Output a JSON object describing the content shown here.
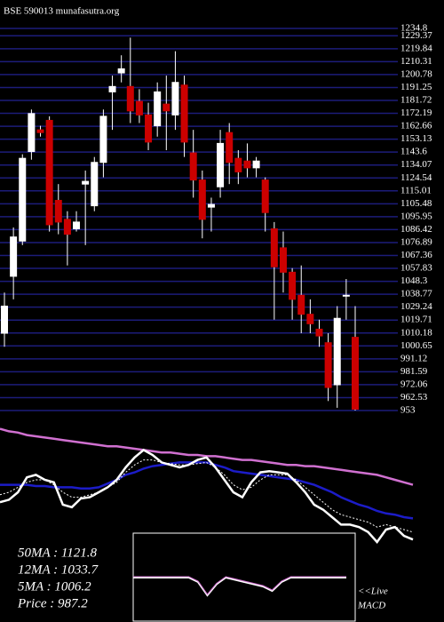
{
  "chart_data": [
    {
      "type": "candlestick",
      "title": "BSE 590013 munafasutra.org",
      "up_color": "#ffffff",
      "down_color": "#cc0000",
      "grid": true,
      "grid_color": "#1c1c7a",
      "ylim": [
        953,
        1234.8
      ],
      "yticks": [
        1234.8,
        1229.37,
        1219.84,
        1210.31,
        1200.78,
        1191.25,
        1181.72,
        1172.19,
        1162.66,
        1153.13,
        1143.6,
        1134.07,
        1124.54,
        1115.01,
        1105.48,
        1095.95,
        1086.42,
        1076.89,
        1067.36,
        1057.83,
        1048.3,
        1038.77,
        1029.24,
        1019.71,
        1010.18,
        1000.65,
        991.12,
        981.59,
        972.06,
        962.53,
        953
      ],
      "open": [
        1010,
        1052,
        1078,
        1144,
        1160,
        1167,
        1108,
        1094,
        1087,
        1120,
        1104,
        1136,
        1188,
        1202,
        1192,
        1181,
        1171,
        1163,
        1179,
        1171,
        1193,
        1143,
        1123,
        1103,
        1118,
        1158,
        1139,
        1137,
        1132,
        1123,
        1087,
        1073,
        1055,
        1038,
        1024,
        1013,
        1003,
        972,
        1038,
        1007
      ],
      "high": [
        1040,
        1088,
        1142,
        1175,
        1163,
        1170,
        1120,
        1100,
        1100,
        1130,
        1140,
        1175,
        1200,
        1215,
        1228,
        1190,
        1180,
        1195,
        1200,
        1218,
        1200,
        1160,
        1130,
        1110,
        1160,
        1165,
        1145,
        1150,
        1140,
        1125,
        1092,
        1085,
        1058,
        1060,
        1035,
        1020,
        1010,
        1030,
        1050,
        1030
      ],
      "low": [
        1000,
        1035,
        1075,
        1138,
        1155,
        1085,
        1083,
        1060,
        1085,
        1075,
        1100,
        1125,
        1160,
        1195,
        1165,
        1165,
        1145,
        1155,
        1145,
        1160,
        1140,
        1110,
        1080,
        1085,
        1110,
        1120,
        1120,
        1125,
        1125,
        1085,
        1020,
        1040,
        1020,
        1010,
        1010,
        1000,
        960,
        955,
        1020,
        953
      ],
      "close": [
        1030,
        1081,
        1139,
        1172,
        1158,
        1090,
        1092,
        1083,
        1092,
        1122,
        1136,
        1170,
        1192,
        1205,
        1174,
        1171,
        1151,
        1188,
        1174,
        1195,
        1151,
        1123,
        1094,
        1105,
        1150,
        1136,
        1129,
        1132,
        1137,
        1099,
        1059,
        1055,
        1035,
        1024,
        1017,
        1008,
        970,
        1021,
        1038,
        954
      ]
    },
    {
      "type": "line",
      "ylim": [
        0,
        100
      ],
      "series": [
        {
          "color": "#d070d0",
          "values": [
            91,
            89,
            88,
            86,
            85,
            84,
            83,
            82,
            81,
            80,
            79,
            78,
            77,
            77,
            76,
            75,
            74,
            73,
            72,
            72,
            71,
            70,
            70,
            69,
            69,
            68,
            67,
            66,
            66,
            65,
            64,
            63,
            62,
            62,
            61,
            61,
            60,
            59,
            58,
            57,
            56,
            55,
            54,
            52,
            50,
            48,
            46
          ]
        },
        {
          "color": "#1c1cc8",
          "values": [
            46,
            46,
            46,
            46,
            45,
            45,
            44,
            44,
            44,
            43,
            43,
            44,
            47,
            50,
            54,
            56,
            59,
            61,
            62,
            63,
            64,
            64,
            64,
            64,
            62,
            60,
            57,
            56,
            55,
            54,
            53,
            52,
            51,
            50,
            48,
            46,
            43,
            40,
            36,
            33,
            30,
            28,
            25,
            23,
            22,
            20,
            19
          ]
        },
        {
          "color": "#ffffff",
          "values": [
            32,
            34,
            40,
            52,
            54,
            50,
            48,
            30,
            28,
            35,
            36,
            40,
            44,
            50,
            60,
            68,
            74,
            70,
            64,
            62,
            60,
            62,
            66,
            68,
            60,
            50,
            40,
            36,
            48,
            56,
            57,
            56,
            55,
            48,
            40,
            30,
            26,
            20,
            14,
            14,
            12,
            8,
            0,
            10,
            12,
            5,
            2
          ]
        },
        {
          "color": "#ffffff",
          "dash": true,
          "values": [
            38,
            40,
            44,
            48,
            50,
            50,
            46,
            40,
            36,
            36,
            38,
            40,
            44,
            48,
            56,
            62,
            66,
            66,
            64,
            63,
            62,
            62,
            63,
            64,
            60,
            54,
            46,
            42,
            44,
            50,
            54,
            54,
            54,
            50,
            44,
            38,
            32,
            26,
            22,
            20,
            18,
            16,
            12,
            14,
            12,
            10,
            8
          ]
        }
      ],
      "legend": [
        "50MA : 1121.8",
        "12MA : 1033.7",
        "5MA : 1006.2",
        "Price  : 987.2"
      ]
    },
    {
      "type": "macd",
      "ylim": [
        -20,
        20
      ],
      "color": "#ffffff",
      "signal_color": "#d070d0",
      "values": [
        0,
        0,
        0,
        0,
        0,
        0,
        0,
        -2,
        -8,
        -3,
        0,
        -1,
        -2,
        -3,
        -4,
        -6,
        -2,
        0,
        0,
        0,
        0,
        0,
        0,
        0
      ],
      "label": "<<Live",
      "title": "MACD"
    }
  ]
}
